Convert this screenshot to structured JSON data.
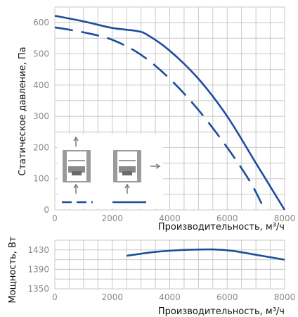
{
  "colors": {
    "series": "#1a4e9c",
    "grid": "#c8c8c8",
    "tick": "#8a8a8a",
    "icon": "#7a7a7a"
  },
  "chart_data": [
    {
      "type": "line",
      "ylabel": "Статическое давление, Па",
      "xlabel": "Производительность, м³/ч",
      "xlim": [
        0,
        8000
      ],
      "ylim": [
        0,
        650
      ],
      "x_ticks": [
        "0",
        "2000",
        "4000",
        "6000",
        "8000"
      ],
      "y_ticks": [
        "0",
        "100",
        "200",
        "300",
        "400",
        "500",
        "600"
      ],
      "grid": true,
      "legend_position": "bottom-left inset (installation diagrams)",
      "series": [
        {
          "style": "solid",
          "points": [
            [
              0,
              622
            ],
            [
              1000,
              604
            ],
            [
              2000,
              583
            ],
            [
              2800,
              574
            ],
            [
              3200,
              562
            ],
            [
              4000,
              510
            ],
            [
              5000,
              420
            ],
            [
              6000,
              300
            ],
            [
              7000,
              150
            ],
            [
              8000,
              0
            ]
          ]
        },
        {
          "style": "dashed",
          "points": [
            [
              0,
              585
            ],
            [
              1000,
              569
            ],
            [
              2000,
              545
            ],
            [
              3000,
              497
            ],
            [
              4000,
              420
            ],
            [
              5000,
              320
            ],
            [
              6000,
              200
            ],
            [
              6800,
              90
            ],
            [
              7200,
              20
            ]
          ]
        }
      ]
    },
    {
      "type": "line",
      "ylabel": "Мощность, Вт",
      "xlabel": "Производительность, м³/ч",
      "xlim": [
        0,
        8000
      ],
      "ylim": [
        1350,
        1450
      ],
      "x_ticks": [
        "0",
        "2000",
        "4000",
        "6000",
        "8000"
      ],
      "y_ticks": [
        "1350",
        "1390",
        "1430"
      ],
      "grid": true,
      "series": [
        {
          "style": "solid",
          "points": [
            [
              2500,
              1418
            ],
            [
              3500,
              1426
            ],
            [
              4500,
              1430
            ],
            [
              5500,
              1431
            ],
            [
              6200,
              1428
            ],
            [
              7000,
              1420
            ],
            [
              8000,
              1410
            ]
          ]
        }
      ]
    }
  ]
}
